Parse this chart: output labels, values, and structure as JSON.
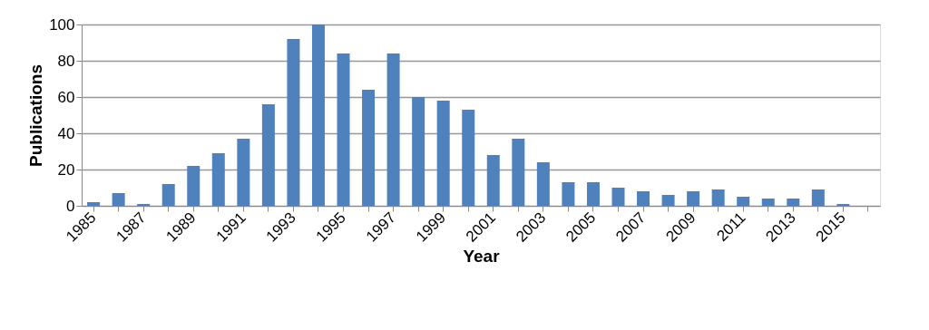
{
  "chart_data": {
    "type": "bar",
    "xlabel": "Year",
    "ylabel": "Publications",
    "categories": [
      "1985",
      null,
      "1987",
      null,
      "1989",
      null,
      "1991",
      null,
      "1993",
      null,
      "1995",
      null,
      "1997",
      null,
      "1999",
      null,
      "2001",
      null,
      "2003",
      null,
      "2005",
      null,
      "2007",
      null,
      "2009",
      null,
      "2011",
      null,
      "2013",
      null,
      "2015",
      null
    ],
    "values": [
      2,
      7,
      1,
      12,
      22,
      29,
      37,
      56,
      92,
      100,
      84,
      64,
      84,
      60,
      58,
      53,
      28,
      37,
      24,
      13,
      13,
      10,
      8,
      6,
      8,
      9,
      5,
      4,
      4,
      9,
      1,
      0
    ],
    "color": "#4f81bd",
    "ylim": [
      0,
      100
    ],
    "yticks": [
      0,
      20,
      40,
      60,
      80,
      100
    ],
    "grid": "y"
  }
}
